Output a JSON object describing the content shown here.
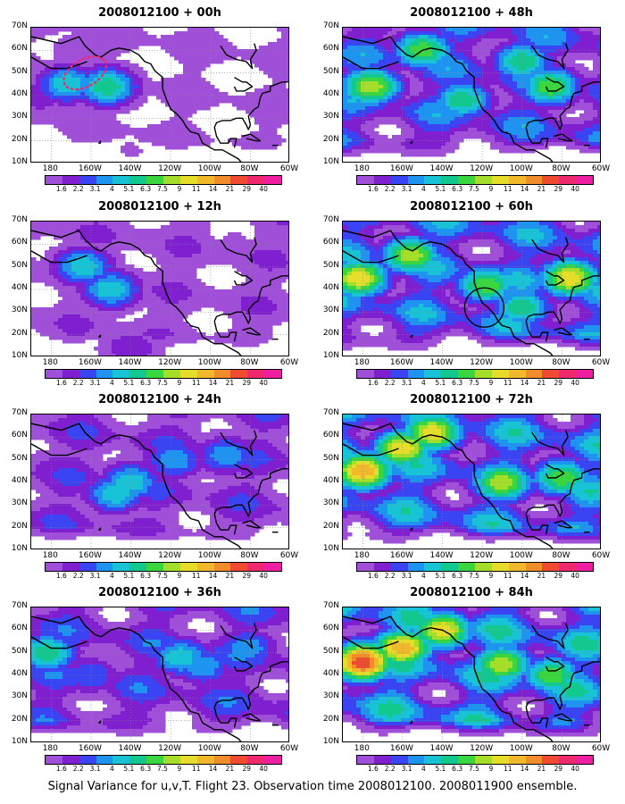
{
  "footer_caption": "Signal Variance for u,v,T. Flight 23. Observation time 2008012100. 2008011900 ensemble.",
  "colorbar": {
    "labels": [
      "1.6",
      "2.2",
      "3.1",
      "4",
      "5.1",
      "6.3",
      "7.5",
      "9",
      "11",
      "14",
      "21",
      "29",
      "40"
    ],
    "colors": [
      "#a050d8",
      "#7f1fd0",
      "#3b44f2",
      "#1f93f0",
      "#19c3d6",
      "#12c88e",
      "#3ad640",
      "#a4de2a",
      "#e6dc2a",
      "#f0b82a",
      "#f08c2a",
      "#f04a30",
      "#f0286e",
      "#f01ea0"
    ]
  },
  "axes": {
    "y_ticks": [
      "70N",
      "60N",
      "50N",
      "40N",
      "30N",
      "20N",
      "10N"
    ],
    "x_ticks": [
      "180",
      "160W",
      "140W",
      "120W",
      "100W",
      "80W",
      "60W"
    ]
  },
  "chart_data": [
    {
      "type": "heatmap",
      "title": "2008012100 + 00h",
      "lead_hours": 0,
      "intensity": 0.25,
      "hotspots": [
        {
          "lon": -172,
          "lat": 45,
          "level": 6
        },
        {
          "lon": -152,
          "lat": 44,
          "level": 7
        },
        {
          "lon": -186,
          "lat": 40,
          "level": 3
        },
        {
          "lon": -140,
          "lat": 16,
          "level": 1
        },
        {
          "lon": -165,
          "lat": 60,
          "level": 2
        }
      ],
      "marked_region": "dotted-ellipse",
      "xlim": [
        -190,
        -60
      ],
      "ylim": [
        10,
        70
      ]
    },
    {
      "type": "heatmap",
      "title": "2008012100 + 12h",
      "lead_hours": 12,
      "intensity": 0.35,
      "hotspots": [
        {
          "lon": -164,
          "lat": 50,
          "level": 6
        },
        {
          "lon": -150,
          "lat": 40,
          "level": 6
        },
        {
          "lon": -140,
          "lat": 14,
          "level": 3
        },
        {
          "lon": -125,
          "lat": 24,
          "level": 1
        },
        {
          "lon": -88,
          "lat": 62,
          "level": 1
        }
      ],
      "xlim": [
        -190,
        -60
      ],
      "ylim": [
        10,
        70
      ]
    },
    {
      "type": "heatmap",
      "title": "2008012100 + 24h",
      "lead_hours": 24,
      "intensity": 0.5,
      "hotspots": [
        {
          "lon": -148,
          "lat": 35,
          "level": 6
        },
        {
          "lon": -140,
          "lat": 40,
          "level": 6
        },
        {
          "lon": -118,
          "lat": 50,
          "level": 5
        },
        {
          "lon": -92,
          "lat": 52,
          "level": 5
        },
        {
          "lon": -178,
          "lat": 45,
          "level": 3
        }
      ],
      "xlim": [
        -190,
        -60
      ],
      "ylim": [
        10,
        70
      ]
    },
    {
      "type": "heatmap",
      "title": "2008012100 + 36h",
      "lead_hours": 36,
      "intensity": 0.6,
      "hotspots": [
        {
          "lon": -182,
          "lat": 50,
          "level": 7
        },
        {
          "lon": -115,
          "lat": 48,
          "level": 6
        },
        {
          "lon": -104,
          "lat": 44,
          "level": 5
        },
        {
          "lon": -82,
          "lat": 52,
          "level": 5
        },
        {
          "lon": -160,
          "lat": 40,
          "level": 4
        }
      ],
      "xlim": [
        -190,
        -60
      ],
      "ylim": [
        10,
        70
      ]
    },
    {
      "type": "heatmap",
      "title": "2008012100 + 48h",
      "lead_hours": 48,
      "intensity": 0.72,
      "hotspots": [
        {
          "lon": -176,
          "lat": 44,
          "level": 9
        },
        {
          "lon": -150,
          "lat": 60,
          "level": 8
        },
        {
          "lon": -86,
          "lat": 44,
          "level": 8
        },
        {
          "lon": -100,
          "lat": 55,
          "level": 7
        },
        {
          "lon": -130,
          "lat": 38,
          "level": 7
        }
      ],
      "xlim": [
        -190,
        -60
      ],
      "ylim": [
        10,
        70
      ]
    },
    {
      "type": "heatmap",
      "title": "2008012100 + 60h",
      "lead_hours": 60,
      "intensity": 0.8,
      "hotspots": [
        {
          "lon": -182,
          "lat": 45,
          "level": 10
        },
        {
          "lon": -156,
          "lat": 55,
          "level": 9
        },
        {
          "lon": -76,
          "lat": 45,
          "level": 10
        },
        {
          "lon": -118,
          "lat": 42,
          "level": 8
        },
        {
          "lon": -100,
          "lat": 32,
          "level": 7
        }
      ],
      "marked_region": "circle",
      "xlim": [
        -190,
        -60
      ],
      "ylim": [
        10,
        70
      ]
    },
    {
      "type": "heatmap",
      "title": "2008012100 + 72h",
      "lead_hours": 72,
      "intensity": 0.88,
      "hotspots": [
        {
          "lon": -180,
          "lat": 45,
          "level": 11
        },
        {
          "lon": -160,
          "lat": 55,
          "level": 10
        },
        {
          "lon": -145,
          "lat": 62,
          "level": 10
        },
        {
          "lon": -110,
          "lat": 40,
          "level": 9
        },
        {
          "lon": -80,
          "lat": 42,
          "level": 8
        }
      ],
      "xlim": [
        -190,
        -60
      ],
      "ylim": [
        10,
        70
      ]
    },
    {
      "type": "heatmap",
      "title": "2008012100 + 84h",
      "lead_hours": 84,
      "intensity": 0.95,
      "hotspots": [
        {
          "lon": -180,
          "lat": 46,
          "level": 13
        },
        {
          "lon": -160,
          "lat": 52,
          "level": 11
        },
        {
          "lon": -140,
          "lat": 60,
          "level": 10
        },
        {
          "lon": -110,
          "lat": 45,
          "level": 9
        },
        {
          "lon": -85,
          "lat": 40,
          "level": 8
        }
      ],
      "xlim": [
        -190,
        -60
      ],
      "ylim": [
        10,
        70
      ]
    }
  ]
}
